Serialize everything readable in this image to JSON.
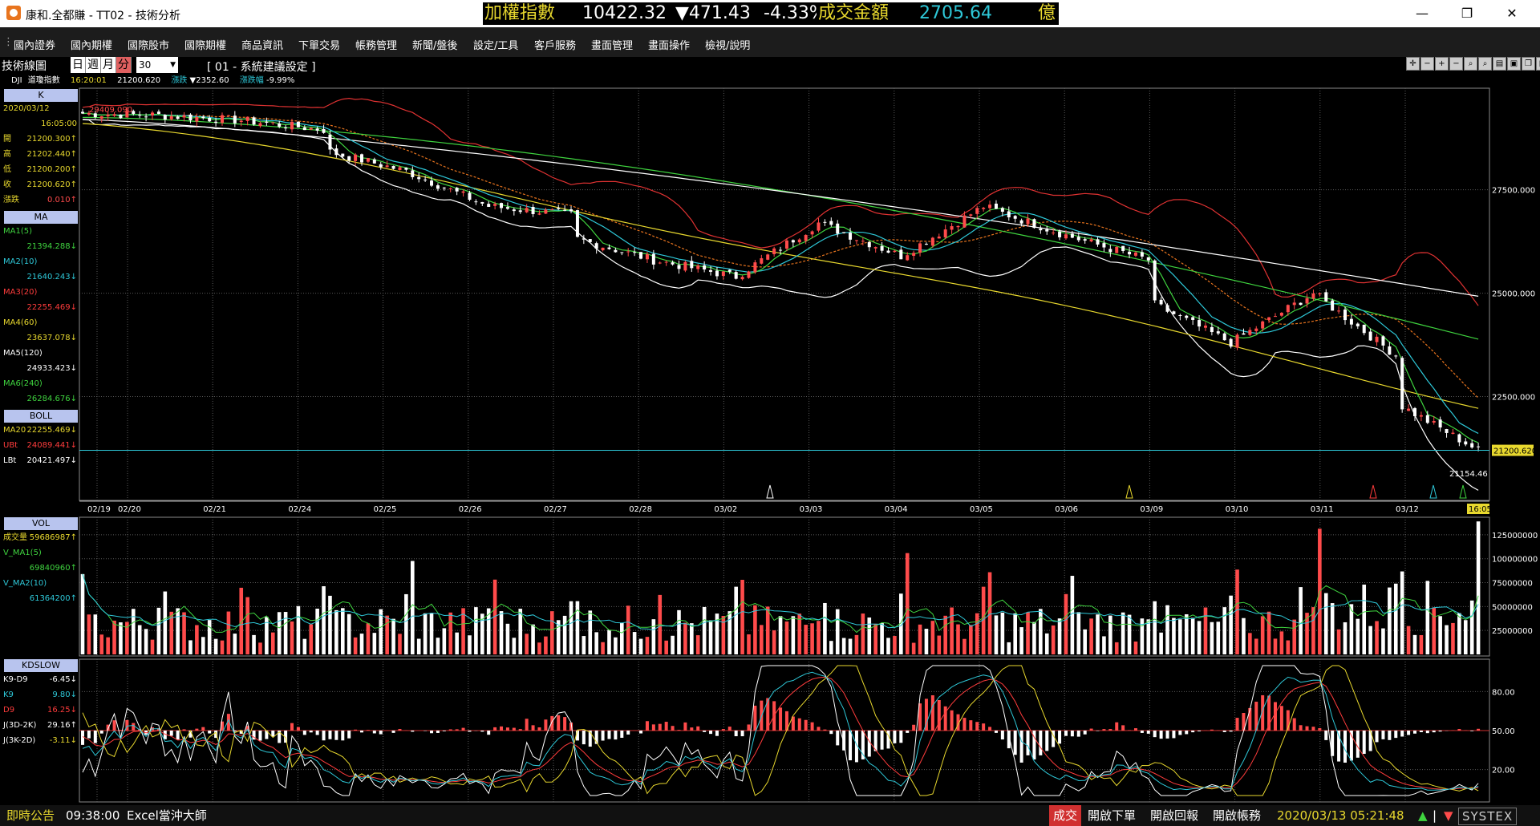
{
  "window": {
    "title": "康和.全都賺 - TT02 - 技術分析",
    "minimize": "—",
    "maximize": "❐",
    "close": "✕"
  },
  "ticker": {
    "index_name": "加權指數",
    "index_value": "10422.32",
    "change": "▼471.43",
    "change_pct": "-4.33%",
    "volume_label": "成交金額",
    "volume_value": "2705.64",
    "unit": "億"
  },
  "menu": [
    "國內證券",
    "國內期權",
    "國際股市",
    "國際期權",
    "商品資訊",
    "下單交易",
    "帳務管理",
    "新聞/盤後",
    "設定/工具",
    "客戶服務",
    "畫面管理",
    "畫面操作",
    "檢視/說明"
  ],
  "chart_header": {
    "title": "技術線圖",
    "periods": [
      "日",
      "週",
      "月",
      "分"
    ],
    "active_period": "分",
    "interval": "30",
    "setting": "[ 01 - 系統建議設定 ]"
  },
  "subinfo": {
    "symbol": "DJI",
    "name": "道瓊指數",
    "time": "16:20:01",
    "price": "21200.620",
    "change_label": "漲跌",
    "change": "▼2352.60",
    "pct_label": "漲跌幅",
    "pct": "-9.99%"
  },
  "k_panel": {
    "header": "K",
    "date": "2020/03/12",
    "time": "16:05:00",
    "rows": [
      {
        "label": "開",
        "value": "21200.300↑"
      },
      {
        "label": "高",
        "value": "21202.440↑"
      },
      {
        "label": "低",
        "value": "21200.200↑"
      },
      {
        "label": "收",
        "value": "21200.620↑"
      },
      {
        "label": "漲跌",
        "value": "0.010↑"
      }
    ]
  },
  "ma_panel": {
    "header": "MA",
    "rows": [
      {
        "label": "MA1(5)",
        "value": "21394.288↓",
        "color": "#3fd43f"
      },
      {
        "label": "MA2(10)",
        "value": "21640.243↓",
        "color": "#2ec8d8"
      },
      {
        "label": "MA3(20)",
        "value": "22255.469↓",
        "color": "#ff3c3c"
      },
      {
        "label": "MA4(60)",
        "value": "23637.078↓",
        "color": "#e8d82e"
      },
      {
        "label": "MA5(120)",
        "value": "24933.423↓",
        "color": "#ffffff"
      },
      {
        "label": "MA6(240)",
        "value": "26284.676↓",
        "color": "#3fd43f"
      }
    ]
  },
  "boll_panel": {
    "header": "BOLL",
    "rows": [
      {
        "label": "MA20",
        "value": "22255.469↓",
        "color": "#e8d82e"
      },
      {
        "label": "UBt",
        "value": "24089.441↓",
        "color": "#ff3c3c"
      },
      {
        "label": "LBt",
        "value": "20421.497↓",
        "color": "#ffffff"
      }
    ]
  },
  "vol_panel": {
    "header": "VOL",
    "rows": [
      {
        "label": "成交量",
        "value": "59686987↑",
        "color": "#e8d82e"
      },
      {
        "label": "V_MA1(5)",
        "value": "",
        "color": "#3fd43f"
      },
      {
        "label": "",
        "value": "69840960↑",
        "color": "#3fd43f"
      },
      {
        "label": "V_MA2(10)",
        "value": "",
        "color": "#2ec8d8"
      },
      {
        "label": "",
        "value": "61364200↑",
        "color": "#2ec8d8"
      }
    ]
  },
  "kd_panel": {
    "header": "KDSLOW",
    "rows": [
      {
        "label": "K9-D9",
        "value": "-6.45↓",
        "color": "#ffffff"
      },
      {
        "label": "K9",
        "value": "9.80↓",
        "color": "#2ec8d8"
      },
      {
        "label": "D9",
        "value": "16.25↓",
        "color": "#ff3c3c"
      },
      {
        "label": "J(3D-2K)",
        "value": "29.16↑",
        "color": "#ffffff"
      },
      {
        "label": "J(3K-2D)",
        "value": "-3.11↓",
        "color": "#e8d82e"
      }
    ]
  },
  "price_axis": {
    "labels": [
      "27500.000",
      "25000.000",
      "22500.000"
    ],
    "current": "21200.620",
    "high_marker": "29409.090",
    "low_marker": "21154.46"
  },
  "date_axis": {
    "labels": [
      "02/19",
      "02/20",
      "02/21",
      "02/24",
      "02/25",
      "02/26",
      "02/27",
      "02/28",
      "03/02",
      "03/03",
      "03/04",
      "03/05",
      "03/06",
      "03/09",
      "03/10",
      "03/11",
      "03/12"
    ],
    "now": "16:05"
  },
  "vol_axis": {
    "labels": [
      "125000000",
      "100000000",
      "75000000",
      "50000000",
      "25000000"
    ]
  },
  "kd_axis": {
    "labels": [
      "80.00",
      "50.00",
      "20.00"
    ]
  },
  "footer": {
    "notice_label": "即時公告",
    "time": "09:38:00",
    "notice": "Excel當沖大師",
    "trade_tag": "成交",
    "buttons": [
      "開啟下單",
      "開啟回報",
      "開啟帳務"
    ],
    "datetime": "2020/03/13 05:21:48",
    "brand": "SYSTEX"
  },
  "colors": {
    "up": "#ff4b4b",
    "down": "#ffffff",
    "grid": "#5a5a5a",
    "ma5": "#3fd43f",
    "ma10": "#2ec8d8",
    "ma20": "#ff3c3c",
    "ma60": "#e8d82e",
    "ma120": "#ffffff",
    "ma240": "#3fd43f",
    "boll_up": "#e03232",
    "boll_mid": "#e8741e",
    "boll_low": "#ffffff"
  },
  "chart_data": {
    "type": "candlestick",
    "title": "",
    "x": [
      "02/19",
      "02/20",
      "02/21",
      "02/24",
      "02/25",
      "02/26",
      "02/27",
      "02/28",
      "03/02",
      "03/03",
      "03/04",
      "03/05",
      "03/06",
      "03/09",
      "03/10",
      "03/11",
      "03/12"
    ],
    "close": [
      29300,
      29180,
      28950,
      27950,
      27100,
      26900,
      25800,
      25400,
      26700,
      25900,
      27100,
      26400,
      25800,
      23800,
      25000,
      23500,
      21200
    ],
    "series": [
      {
        "name": "MA1(5)",
        "last": 21394.288
      },
      {
        "name": "MA2(10)",
        "last": 21640.243
      },
      {
        "name": "MA3(20)",
        "last": 22255.469
      },
      {
        "name": "MA4(60)",
        "last": 23637.078
      },
      {
        "name": "MA5(120)",
        "last": 24933.423
      },
      {
        "name": "MA6(240)",
        "last": 26284.676
      }
    ],
    "ylim": [
      20300,
      29800
    ],
    "interval": "30 min"
  }
}
